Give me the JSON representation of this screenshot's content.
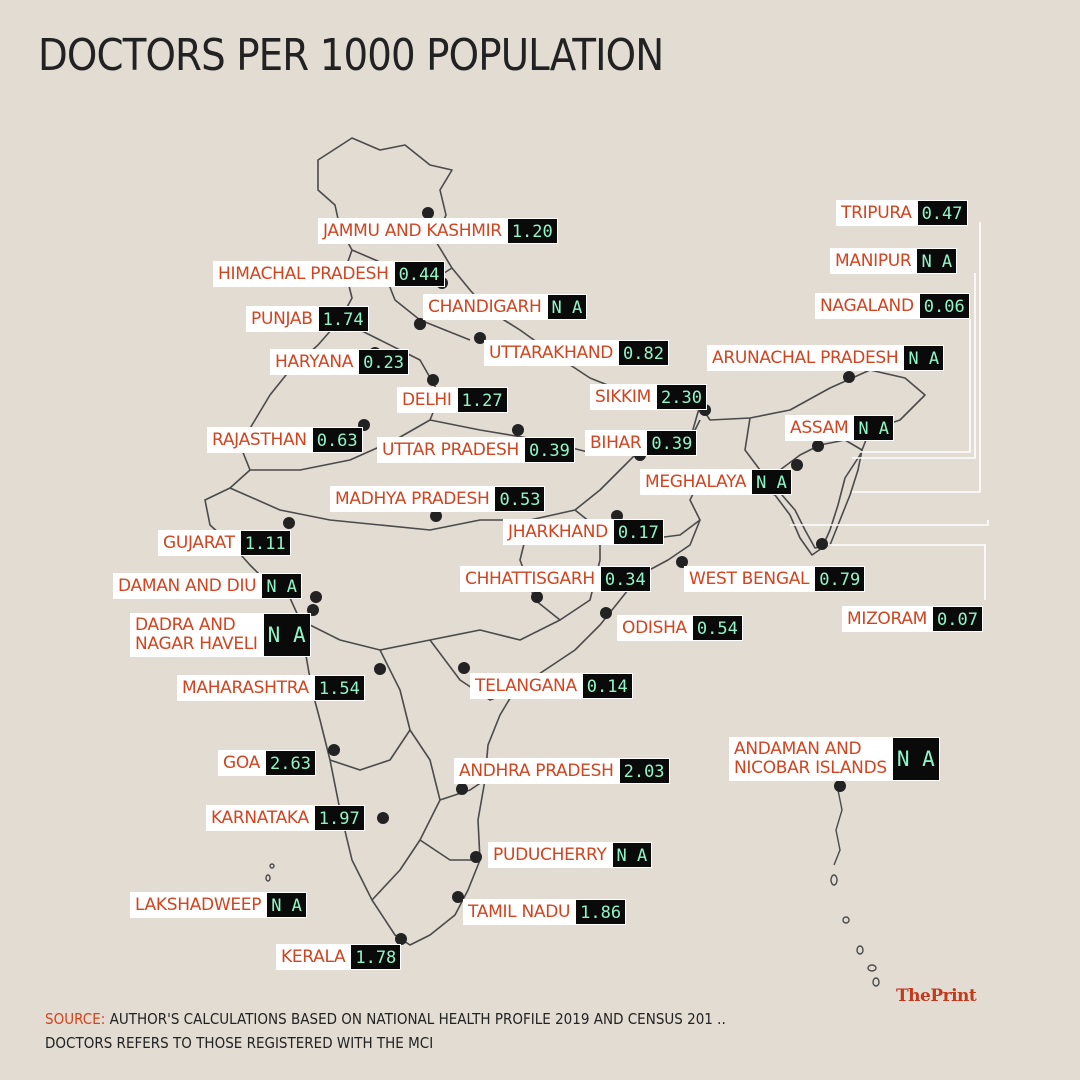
{
  "title": "DOCTORS PER 1000 POPULATION",
  "states": [
    {
      "id": "jammu-and-kashmir",
      "name": "JAMMU AND KASHMIR",
      "value": "1.20"
    },
    {
      "id": "himachal-pradesh",
      "name": "HIMACHAL PRADESH",
      "value": "0.44"
    },
    {
      "id": "chandigarh",
      "name": "CHANDIGARH",
      "value": "N A"
    },
    {
      "id": "punjab",
      "name": "PUNJAB",
      "value": "1.74"
    },
    {
      "id": "uttarakhand",
      "name": "UTTARAKHAND",
      "value": "0.82"
    },
    {
      "id": "haryana",
      "name": "HARYANA",
      "value": "0.23"
    },
    {
      "id": "delhi",
      "name": "DELHI",
      "value": "1.27"
    },
    {
      "id": "rajasthan",
      "name": "RAJASTHAN",
      "value": "0.63"
    },
    {
      "id": "uttar-pradesh",
      "name": "UTTAR PRADESH",
      "value": "0.39"
    },
    {
      "id": "sikkim",
      "name": "SIKKIM",
      "value": "2.30"
    },
    {
      "id": "bihar",
      "name": "BIHAR",
      "value": "0.39"
    },
    {
      "id": "madhya-pradesh",
      "name": "MADHYA PRADESH",
      "value": "0.53"
    },
    {
      "id": "gujarat",
      "name": "GUJARAT",
      "value": "1.11"
    },
    {
      "id": "jharkhand",
      "name": "JHARKHAND",
      "value": "0.17"
    },
    {
      "id": "meghalaya",
      "name": "MEGHALAYA",
      "value": "N A"
    },
    {
      "id": "daman-and-diu",
      "name": "DAMAN AND DIU",
      "value": "N A"
    },
    {
      "id": "chhattisgarh",
      "name": "CHHATTISGARH",
      "value": "0.34"
    },
    {
      "id": "west-bengal",
      "name": "WEST BENGAL",
      "value": "0.79"
    },
    {
      "id": "dadra-and-nagar-haveli",
      "name": "DADRA AND\nNAGAR HAVELI",
      "value": "N A"
    },
    {
      "id": "odisha",
      "name": "ODISHA",
      "value": "0.54"
    },
    {
      "id": "maharashtra",
      "name": "MAHARASHTRA",
      "value": "1.54"
    },
    {
      "id": "telangana",
      "name": "TELANGANA",
      "value": "0.14"
    },
    {
      "id": "goa",
      "name": "GOA",
      "value": "2.63"
    },
    {
      "id": "andhra-pradesh",
      "name": "ANDHRA PRADESH",
      "value": "2.03"
    },
    {
      "id": "karnataka",
      "name": "KARNATAKA",
      "value": "1.97"
    },
    {
      "id": "puducherry",
      "name": "PUDUCHERRY",
      "value": "N A"
    },
    {
      "id": "lakshadweep",
      "name": "LAKSHADWEEP",
      "value": "N A"
    },
    {
      "id": "tamil-nadu",
      "name": "TAMIL NADU",
      "value": "1.86"
    },
    {
      "id": "kerala",
      "name": "KERALA",
      "value": "1.78"
    },
    {
      "id": "tripura",
      "name": "TRIPURA",
      "value": "0.47"
    },
    {
      "id": "manipur",
      "name": "MANIPUR",
      "value": "N A"
    },
    {
      "id": "nagaland",
      "name": "NAGALAND",
      "value": "0.06"
    },
    {
      "id": "arunachal-pradesh",
      "name": "ARUNACHAL PRADESH",
      "value": "N A"
    },
    {
      "id": "assam",
      "name": "ASSAM",
      "value": "N A"
    },
    {
      "id": "mizoram",
      "name": "MIZORAM",
      "value": "0.07"
    },
    {
      "id": "andaman-and-nicobar",
      "name": "ANDAMAN AND\nNICOBAR ISLANDS",
      "value": "N A"
    }
  ],
  "source": {
    "label": "SOURCE:",
    "text": " AUTHOR'S CALCULATIONS BASED ON NATIONAL HEALTH PROFILE 2019 AND CENSUS 201 .."
  },
  "note": "DOCTORS REFERS TO THOSE REGISTERED WITH THE MCI",
  "logo": "ThePrint",
  "colors": {
    "background": "#e3dcd3",
    "label_text": "#d2441f",
    "value_box": "#0a0a0a",
    "value_text": "#8ff5c8",
    "map_outline": "#4a4a4a"
  }
}
